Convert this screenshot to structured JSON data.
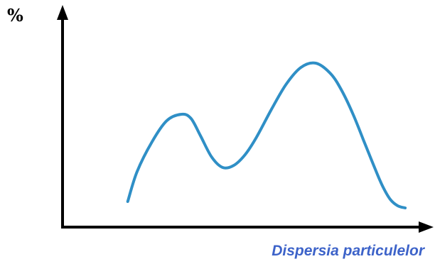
{
  "chart_data": {
    "type": "line",
    "title": "",
    "xlabel": "Dispersia particulelor",
    "ylabel": "%",
    "xlim": [
      0,
      100
    ],
    "ylim": [
      0,
      100
    ],
    "grid": false,
    "series": [
      {
        "color": "#2f8fc6",
        "x": [
          17.5,
          20,
          24,
          28,
          32,
          34.5,
          37,
          40,
          43,
          46,
          49,
          52,
          56,
          60,
          64,
          68,
          72,
          75,
          78,
          81,
          84,
          86,
          88,
          90,
          92
        ],
        "y": [
          12,
          26,
          40,
          50,
          53,
          51,
          43,
          33,
          28,
          29,
          34,
          42,
          55,
          67,
          75,
          77,
          72,
          64,
          53,
          40,
          27,
          19,
          13,
          10,
          9
        ]
      }
    ]
  },
  "colors": {
    "axis": "#000000",
    "curve": "#2f8fc6",
    "xlabel": "#3d63c9"
  }
}
